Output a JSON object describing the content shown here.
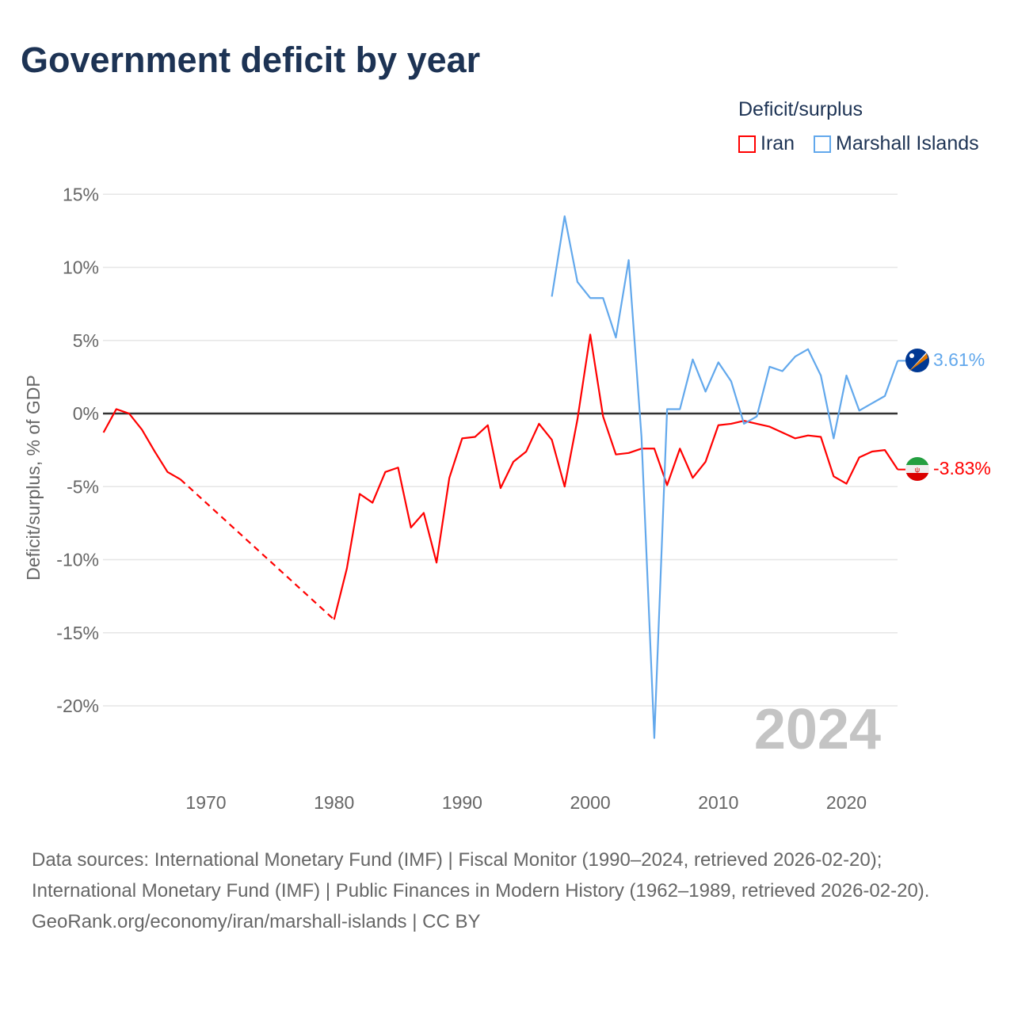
{
  "title": "Government deficit by year",
  "legend": {
    "title": "Deficit/surplus",
    "items": [
      {
        "label": "Iran",
        "color": "#ff0000"
      },
      {
        "label": "Marshall Islands",
        "color": "#62a8ec"
      }
    ]
  },
  "year_watermark": "2024",
  "end_labels": {
    "marshall": "3.61%",
    "iran": "-3.83%"
  },
  "footer": {
    "sources": "Data sources: International Monetary Fund (IMF) | Fiscal Monitor (1990–2024, retrieved 2026-02-20); International Monetary Fund (IMF) | Public Finances in Modern History (1962–1989, retrieved 2026-02-20).",
    "link": "GeoRank.org/economy/iran/marshall-islands | CC BY"
  },
  "chart_data": {
    "type": "line",
    "title": "Government deficit by year",
    "ylabel": "Deficit/surplus, % of GDP",
    "xlabel": "",
    "xlim": [
      1962,
      2024
    ],
    "ylim": [
      -22.5,
      15
    ],
    "yticks": [
      15,
      10,
      5,
      0,
      -5,
      -10,
      -15,
      -20
    ],
    "ytick_labels": [
      "15%",
      "10%",
      "5%",
      "0%",
      "-5%",
      "-10%",
      "-15%",
      "-20%"
    ],
    "xticks": [
      1970,
      1980,
      1990,
      2000,
      2010,
      2020
    ],
    "xtick_labels": [
      "1970",
      "1980",
      "1990",
      "2000",
      "2010",
      "2020"
    ],
    "grid": true,
    "legend_position": "top-right",
    "series": [
      {
        "name": "Iran",
        "color": "#ff0000",
        "x": [
          1962,
          1963,
          1964,
          1965,
          1966,
          1967,
          1968,
          1980,
          1981,
          1982,
          1983,
          1984,
          1985,
          1986,
          1987,
          1988,
          1989,
          1990,
          1991,
          1992,
          1993,
          1994,
          1995,
          1996,
          1997,
          1998,
          1999,
          2000,
          2001,
          2002,
          2003,
          2004,
          2005,
          2006,
          2007,
          2008,
          2009,
          2010,
          2011,
          2012,
          2013,
          2014,
          2015,
          2016,
          2017,
          2018,
          2019,
          2020,
          2021,
          2022,
          2023,
          2024
        ],
        "values": [
          -1.3,
          0.3,
          0.0,
          -1.1,
          -2.6,
          -4.0,
          -4.5,
          -14.1,
          -10.6,
          -5.5,
          -6.1,
          -4.0,
          -3.7,
          -7.8,
          -6.8,
          -10.2,
          -4.4,
          -1.7,
          -1.6,
          -0.8,
          -5.1,
          -3.3,
          -2.6,
          -0.7,
          -1.8,
          -5.0,
          -0.4,
          5.4,
          -0.2,
          -2.8,
          -2.7,
          -2.4,
          -2.4,
          -4.9,
          -2.4,
          -4.4,
          -3.3,
          -0.8,
          -0.7,
          -0.5,
          -0.7,
          -0.9,
          -1.3,
          -1.7,
          -1.5,
          -1.6,
          -4.3,
          -4.8,
          -3.0,
          -2.6,
          -2.5,
          -3.83
        ],
        "gap_after": 1968
      },
      {
        "name": "Marshall Islands",
        "color": "#62a8ec",
        "x": [
          1997,
          1998,
          1999,
          2000,
          2001,
          2002,
          2003,
          2004,
          2005,
          2006,
          2007,
          2008,
          2009,
          2010,
          2011,
          2012,
          2013,
          2014,
          2015,
          2016,
          2017,
          2018,
          2019,
          2020,
          2021,
          2022,
          2023,
          2024
        ],
        "values": [
          8.0,
          13.5,
          9.0,
          7.9,
          7.9,
          5.2,
          10.5,
          -1.6,
          -22.2,
          0.3,
          0.3,
          3.7,
          1.5,
          3.5,
          2.2,
          -0.7,
          -0.2,
          3.2,
          2.9,
          3.9,
          4.4,
          2.6,
          -1.7,
          2.6,
          0.2,
          0.7,
          1.2,
          3.61
        ]
      }
    ]
  }
}
